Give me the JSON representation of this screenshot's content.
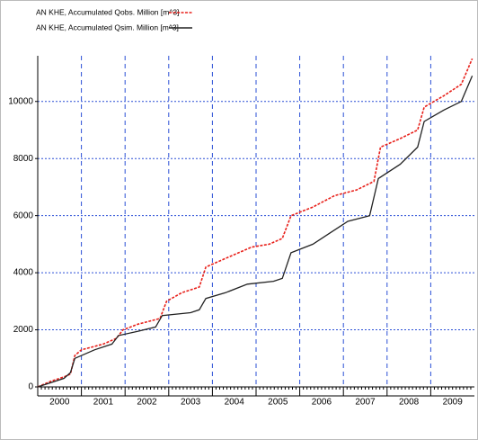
{
  "chart_data": {
    "type": "line",
    "legend_texts": [
      "AN KHE, Accumulated Qobs. Million [m^3]",
      "AN KHE, Accumulated Qsim. Million [m^3]"
    ],
    "categories": [
      "2000",
      "2001",
      "2002",
      "2003",
      "2004",
      "2005",
      "2006",
      "2007",
      "2008",
      "2009"
    ],
    "xlim": [
      2000,
      2010
    ],
    "ylim": [
      0,
      11600
    ],
    "yticks": [
      0,
      2000,
      4000,
      6000,
      8000,
      10000
    ],
    "grid": true,
    "series": [
      {
        "name": "AN KHE, Accumulated Qobs. Million [m^3]",
        "color": "#e8201a",
        "dashed": true,
        "x": [
          2000,
          2000.3,
          2000.6,
          2000.75,
          2000.85,
          2001,
          2001.5,
          2001.8,
          2001.95,
          2002.3,
          2002.8,
          2002.95,
          2003.3,
          2003.7,
          2003.85,
          2004.3,
          2004.9,
          2005.3,
          2005.6,
          2005.8,
          2006.3,
          2006.8,
          2007.3,
          2007.7,
          2007.85,
          2008.3,
          2008.7,
          2008.85,
          2009.3,
          2009.7,
          2009.95
        ],
        "values": [
          0,
          200,
          350,
          450,
          1100,
          1300,
          1500,
          1700,
          2000,
          2200,
          2400,
          3000,
          3300,
          3500,
          4200,
          4500,
          4900,
          5000,
          5200,
          6000,
          6300,
          6700,
          6900,
          7200,
          8400,
          8700,
          9000,
          9800,
          10200,
          10600,
          11500
        ]
      },
      {
        "name": "AN KHE, Accumulated Qsim. Million [m^3]",
        "color": "#222222",
        "dashed": false,
        "x": [
          2000,
          2000.6,
          2000.75,
          2000.85,
          2001.3,
          2001.7,
          2001.85,
          2002.3,
          2002.7,
          2002.85,
          2003.5,
          2003.7,
          2003.85,
          2004.3,
          2004.8,
          2005.4,
          2005.6,
          2005.8,
          2006.3,
          2006.7,
          2007.1,
          2007.6,
          2007.8,
          2008.3,
          2008.7,
          2008.85,
          2009.3,
          2009.7,
          2009.95
        ],
        "values": [
          0,
          300,
          500,
          1000,
          1300,
          1500,
          1800,
          1950,
          2100,
          2500,
          2600,
          2700,
          3100,
          3300,
          3600,
          3700,
          3800,
          4700,
          5000,
          5400,
          5800,
          6000,
          7300,
          7800,
          8400,
          9300,
          9700,
          10000,
          10900
        ]
      }
    ]
  }
}
